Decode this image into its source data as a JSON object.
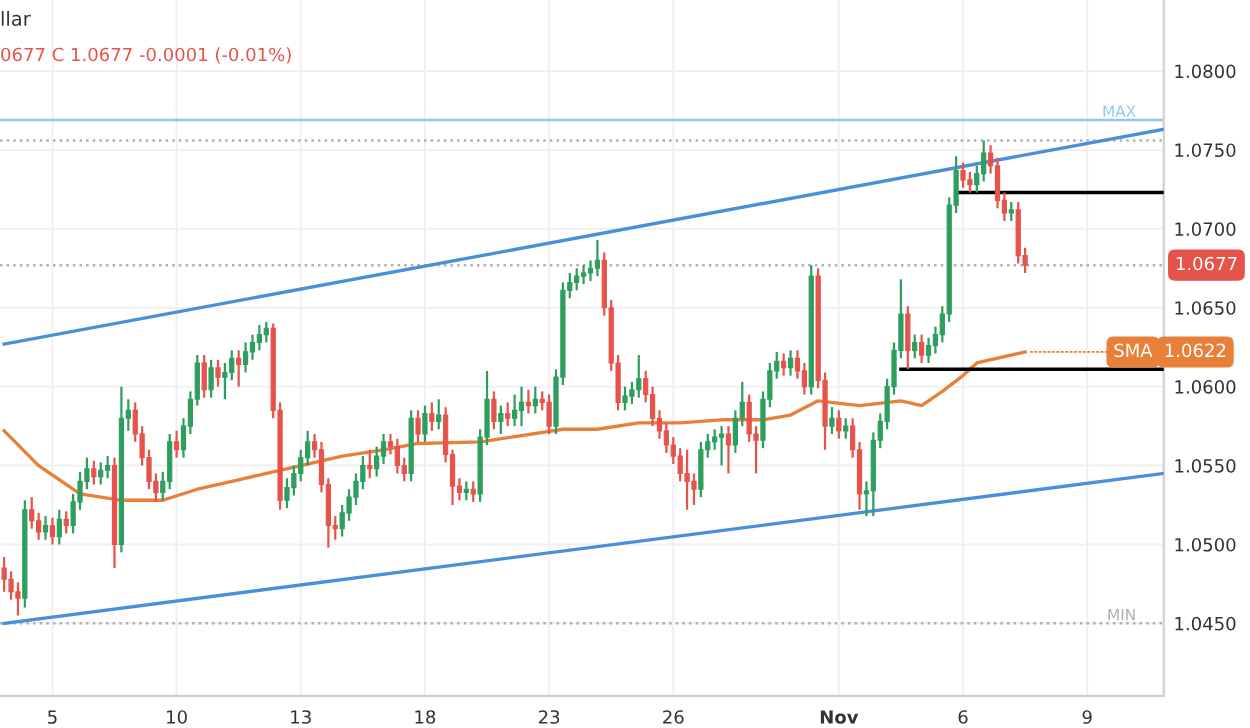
{
  "chart_data": {
    "type": "candlestick",
    "title": "llar",
    "subtitle": "0677 C 1.0677 -0.0001 (-0.01%)",
    "categories": [
      null,
      null,
      null,
      null,
      null,
      null,
      null,
      "5",
      null,
      null,
      null,
      null,
      null,
      null,
      null,
      null,
      null,
      null,
      null,
      null,
      null,
      null,
      null,
      null,
      null,
      "10",
      null,
      null,
      null,
      null,
      null,
      null,
      null,
      null,
      null,
      null,
      null,
      null,
      null,
      null,
      null,
      null,
      null,
      "13",
      null,
      null,
      null,
      null,
      null,
      null,
      null,
      null,
      null,
      null,
      null,
      null,
      null,
      null,
      null,
      null,
      null,
      "18",
      null,
      null,
      null,
      null,
      null,
      null,
      null,
      null,
      null,
      null,
      null,
      null,
      null,
      null,
      null,
      null,
      null,
      "23",
      null,
      null,
      null,
      null,
      null,
      null,
      null,
      null,
      null,
      null,
      null,
      null,
      null,
      null,
      null,
      null,
      null,
      "26",
      null,
      null,
      null,
      null,
      null,
      null,
      null,
      null,
      null,
      null,
      null,
      null,
      null,
      null,
      null,
      null,
      null,
      null,
      null,
      null,
      null,
      null,
      null,
      "Nov",
      null,
      null,
      null,
      null,
      null,
      null,
      null,
      null,
      null,
      null,
      null,
      null,
      null,
      null,
      null,
      null,
      null,
      "6",
      null,
      null,
      null,
      null,
      null,
      null,
      null,
      null,
      null,
      null,
      null,
      null,
      null,
      null,
      null,
      null,
      null,
      "9",
      null,
      null,
      null,
      null,
      null,
      null,
      null,
      null,
      null,
      null,
      null
    ],
    "value_labels": [
      null,
      null,
      null,
      null,
      null,
      null,
      null,
      null,
      null,
      null,
      null,
      null,
      null,
      null,
      null,
      null,
      null,
      null,
      null,
      null,
      null,
      null,
      null,
      null,
      null,
      null,
      null,
      null,
      null,
      null,
      null,
      null,
      null,
      null,
      null,
      null,
      null,
      null,
      null,
      null,
      null,
      null,
      null,
      null,
      null,
      null,
      null,
      null,
      null,
      null,
      null,
      null,
      null,
      null,
      null,
      null,
      null,
      null,
      null,
      null,
      null,
      null,
      null,
      null,
      null,
      null,
      null,
      null,
      null,
      null,
      null,
      null,
      null,
      null,
      null,
      null,
      null,
      null,
      null,
      null,
      null,
      null,
      null,
      null,
      null,
      null,
      null,
      null,
      null,
      null,
      null,
      null,
      null,
      null,
      null,
      null,
      null,
      null,
      null,
      null,
      null,
      null,
      null,
      null,
      null,
      null,
      null,
      null,
      null,
      null,
      null,
      null,
      null,
      null,
      null,
      null,
      null,
      null,
      null,
      null,
      null,
      null,
      null,
      null,
      null,
      null,
      null,
      null,
      null,
      null,
      null,
      null,
      null,
      null,
      null,
      null,
      null,
      null,
      null,
      null,
      null,
      null,
      null,
      null,
      null,
      null,
      null,
      null,
      "1.0677",
      null,
      null,
      null,
      null,
      null,
      null,
      null,
      null,
      null,
      null,
      null,
      null,
      null,
      null,
      null,
      null,
      null,
      null,
      null,
      null
    ],
    "ohlc": [
      [
        1.0485,
        1.0492,
        1.047,
        1.0478
      ],
      [
        1.0478,
        1.0483,
        1.0465,
        1.047
      ],
      [
        1.047,
        1.0476,
        1.0455,
        1.0466
      ],
      [
        1.0466,
        1.0528,
        1.046,
        1.0522
      ],
      [
        1.0522,
        1.053,
        1.051,
        1.0515
      ],
      [
        1.0515,
        1.052,
        1.0503,
        1.0508
      ],
      [
        1.0508,
        1.0518,
        1.0503,
        1.0512
      ],
      [
        1.0512,
        1.0517,
        1.05,
        1.0505
      ],
      [
        1.0505,
        1.0522,
        1.05,
        1.0516
      ],
      [
        1.0516,
        1.0521,
        1.0507,
        1.0512
      ],
      [
        1.0512,
        1.0532,
        1.0507,
        1.0527
      ],
      [
        1.0527,
        1.0546,
        1.0522,
        1.054
      ],
      [
        1.054,
        1.0555,
        1.0535,
        1.0548
      ],
      [
        1.0548,
        1.0553,
        1.0538,
        1.0543
      ],
      [
        1.0543,
        1.0552,
        1.0538,
        1.0547
      ],
      [
        1.0547,
        1.0556,
        1.0542,
        1.055
      ],
      [
        1.055,
        1.0555,
        1.0485,
        1.05
      ],
      [
        1.05,
        1.06,
        1.0495,
        1.058
      ],
      [
        1.058,
        1.0592,
        1.0572,
        1.0585
      ],
      [
        1.0585,
        1.059,
        1.0565,
        1.057
      ],
      [
        1.057,
        1.0575,
        1.055,
        1.0555
      ],
      [
        1.0555,
        1.056,
        1.0535,
        1.054
      ],
      [
        1.054,
        1.0545,
        1.0527,
        1.0533
      ],
      [
        1.0533,
        1.0546,
        1.0528,
        1.054
      ],
      [
        1.054,
        1.057,
        1.0535,
        1.0565
      ],
      [
        1.0565,
        1.0572,
        1.0555,
        1.056
      ],
      [
        1.056,
        1.058,
        1.0555,
        1.0575
      ],
      [
        1.0575,
        1.0597,
        1.057,
        1.0592
      ],
      [
        1.0592,
        1.062,
        1.0588,
        1.0615
      ],
      [
        1.0615,
        1.062,
        1.0593,
        1.0598
      ],
      [
        1.0598,
        1.0617,
        1.0593,
        1.0612
      ],
      [
        1.0612,
        1.0617,
        1.06,
        1.0606
      ],
      [
        1.0606,
        1.0615,
        1.0592,
        1.0609
      ],
      [
        1.0609,
        1.0623,
        1.0604,
        1.0618
      ],
      [
        1.0618,
        1.0623,
        1.06,
        1.0614
      ],
      [
        1.0614,
        1.0628,
        1.0609,
        1.0622
      ],
      [
        1.0622,
        1.0633,
        1.0617,
        1.0628
      ],
      [
        1.0628,
        1.0639,
        1.0623,
        1.0633
      ],
      [
        1.0633,
        1.0641,
        1.0628,
        1.0637
      ],
      [
        1.0637,
        1.064,
        1.058,
        1.0585
      ],
      [
        1.0585,
        1.059,
        1.0522,
        1.0528
      ],
      [
        1.0528,
        1.0542,
        1.0523,
        1.0536
      ],
      [
        1.0536,
        1.055,
        1.0531,
        1.0545
      ],
      [
        1.0545,
        1.056,
        1.054,
        1.0555
      ],
      [
        1.0555,
        1.0572,
        1.055,
        1.0565
      ],
      [
        1.0565,
        1.057,
        1.0555,
        1.056
      ],
      [
        1.056,
        1.0565,
        1.0533,
        1.0538
      ],
      [
        1.0538,
        1.0542,
        1.0498,
        1.0512
      ],
      [
        1.0512,
        1.0518,
        1.0503,
        1.051
      ],
      [
        1.051,
        1.0525,
        1.0505,
        1.052
      ],
      [
        1.052,
        1.0535,
        1.0515,
        1.053
      ],
      [
        1.053,
        1.0545,
        1.0525,
        1.054
      ],
      [
        1.054,
        1.0556,
        1.0535,
        1.055
      ],
      [
        1.055,
        1.056,
        1.0542,
        1.0548
      ],
      [
        1.0548,
        1.0562,
        1.0543,
        1.0556
      ],
      [
        1.0556,
        1.057,
        1.0551,
        1.0565
      ],
      [
        1.0565,
        1.057,
        1.0557,
        1.0562
      ],
      [
        1.0562,
        1.0567,
        1.0545,
        1.055
      ],
      [
        1.055,
        1.0555,
        1.054,
        1.0545
      ],
      [
        1.0545,
        1.0585,
        1.054,
        1.058
      ],
      [
        1.058,
        1.0585,
        1.0565,
        1.057
      ],
      [
        1.057,
        1.0588,
        1.0565,
        1.0583
      ],
      [
        1.0583,
        1.059,
        1.0572,
        1.0578
      ],
      [
        1.0578,
        1.0592,
        1.0573,
        1.0582
      ],
      [
        1.0582,
        1.0587,
        1.0552,
        1.0557
      ],
      [
        1.0557,
        1.056,
        1.0525,
        1.0537
      ],
      [
        1.0537,
        1.0542,
        1.0528,
        1.0533
      ],
      [
        1.0533,
        1.054,
        1.0528,
        1.0535
      ],
      [
        1.0535,
        1.054,
        1.0527,
        1.0532
      ],
      [
        1.0532,
        1.0573,
        1.0527,
        1.0568
      ],
      [
        1.0568,
        1.061,
        1.0563,
        1.0592
      ],
      [
        1.0592,
        1.0597,
        1.0573,
        1.0578
      ],
      [
        1.0578,
        1.0588,
        1.057,
        1.0583
      ],
      [
        1.0583,
        1.059,
        1.0575,
        1.058
      ],
      [
        1.058,
        1.0595,
        1.0575,
        1.0585
      ],
      [
        1.0585,
        1.06,
        1.0575,
        1.059
      ],
      [
        1.059,
        1.0598,
        1.0583,
        1.0588
      ],
      [
        1.0588,
        1.06,
        1.0583,
        1.0592
      ],
      [
        1.0592,
        1.0597,
        1.0585,
        1.059
      ],
      [
        1.059,
        1.0595,
        1.057,
        1.0575
      ],
      [
        1.0575,
        1.0611,
        1.057,
        1.0606
      ],
      [
        1.0606,
        1.0666,
        1.0601,
        1.0661
      ],
      [
        1.0661,
        1.0672,
        1.0656,
        1.0666
      ],
      [
        1.0666,
        1.0675,
        1.0661,
        1.067
      ],
      [
        1.067,
        1.0677,
        1.0665,
        1.0672
      ],
      [
        1.0672,
        1.068,
        1.0667,
        1.0675
      ],
      [
        1.0675,
        1.0693,
        1.067,
        1.068
      ],
      [
        1.068,
        1.0685,
        1.0645,
        1.065
      ],
      [
        1.065,
        1.0655,
        1.061,
        1.0615
      ],
      [
        1.0615,
        1.062,
        1.0585,
        1.059
      ],
      [
        1.059,
        1.06,
        1.0585,
        1.0594
      ],
      [
        1.0594,
        1.0603,
        1.0589,
        1.0598
      ],
      [
        1.0598,
        1.062,
        1.0593,
        1.0605
      ],
      [
        1.0605,
        1.061,
        1.059,
        1.0595
      ],
      [
        1.0595,
        1.06,
        1.0575,
        1.058
      ],
      [
        1.058,
        1.0585,
        1.0567,
        1.0572
      ],
      [
        1.0572,
        1.0577,
        1.0558,
        1.0563
      ],
      [
        1.0563,
        1.0568,
        1.0551,
        1.0556
      ],
      [
        1.0556,
        1.0561,
        1.054,
        1.0545
      ],
      [
        1.0545,
        1.056,
        1.0522,
        1.054
      ],
      [
        1.054,
        1.0545,
        1.0525,
        1.0535
      ],
      [
        1.0535,
        1.0565,
        1.053,
        1.056
      ],
      [
        1.056,
        1.057,
        1.0555,
        1.0565
      ],
      [
        1.0565,
        1.0573,
        1.056,
        1.0568
      ],
      [
        1.0568,
        1.0575,
        1.055,
        1.057
      ],
      [
        1.057,
        1.0575,
        1.0545,
        1.0563
      ],
      [
        1.0563,
        1.0585,
        1.0558,
        1.058
      ],
      [
        1.058,
        1.0603,
        1.0575,
        1.059
      ],
      [
        1.059,
        1.0595,
        1.0565,
        1.057
      ],
      [
        1.057,
        1.0575,
        1.0545,
        1.0566
      ],
      [
        1.0566,
        1.0597,
        1.0561,
        1.0592
      ],
      [
        1.0592,
        1.0615,
        1.0587,
        1.061
      ],
      [
        1.061,
        1.0622,
        1.0605,
        1.0616
      ],
      [
        1.0616,
        1.0621,
        1.0607,
        1.0612
      ],
      [
        1.0612,
        1.0623,
        1.0607,
        1.0618
      ],
      [
        1.0618,
        1.0623,
        1.0605,
        1.061
      ],
      [
        1.061,
        1.0615,
        1.0595,
        1.06
      ],
      [
        1.06,
        1.0677,
        1.0595,
        1.067
      ],
      [
        1.067,
        1.0675,
        1.0599,
        1.0604
      ],
      [
        1.0604,
        1.0609,
        1.056,
        1.0575
      ],
      [
        1.0575,
        1.0587,
        1.057,
        1.058
      ],
      [
        1.058,
        1.0585,
        1.0567,
        1.0572
      ],
      [
        1.0572,
        1.058,
        1.0567,
        1.0575
      ],
      [
        1.0575,
        1.058,
        1.0555,
        1.056
      ],
      [
        1.056,
        1.0565,
        1.0522,
        1.0532
      ],
      [
        1.0532,
        1.054,
        1.0518,
        1.0534
      ],
      [
        1.0534,
        1.0571,
        1.0518,
        1.0566
      ],
      [
        1.0566,
        1.0583,
        1.0561,
        1.0578
      ],
      [
        1.0578,
        1.0605,
        1.0573,
        1.06
      ],
      [
        1.06,
        1.0628,
        1.0595,
        1.0623
      ],
      [
        1.0623,
        1.0668,
        1.0618,
        1.0646
      ],
      [
        1.0646,
        1.0651,
        1.0611,
        1.0623
      ],
      [
        1.0623,
        1.0633,
        1.0618,
        1.0628
      ],
      [
        1.0628,
        1.0633,
        1.0615,
        1.062
      ],
      [
        1.062,
        1.0631,
        1.0615,
        1.0626
      ],
      [
        1.0626,
        1.0638,
        1.0621,
        1.0633
      ],
      [
        1.0633,
        1.0651,
        1.0628,
        1.0646
      ],
      [
        1.0646,
        1.072,
        1.0641,
        1.0715
      ],
      [
        1.0715,
        1.0746,
        1.071,
        1.0737
      ],
      [
        1.0737,
        1.0742,
        1.0726,
        1.0731
      ],
      [
        1.0731,
        1.0736,
        1.0723,
        1.0728
      ],
      [
        1.0728,
        1.074,
        1.0723,
        1.0735
      ],
      [
        1.0735,
        1.0756,
        1.073,
        1.0748
      ],
      [
        1.0748,
        1.0753,
        1.0735,
        1.074
      ],
      [
        1.074,
        1.0745,
        1.0713,
        1.0718
      ],
      [
        1.0718,
        1.0723,
        1.0705,
        1.071
      ],
      [
        1.071,
        1.0717,
        1.0705,
        1.0712
      ],
      [
        1.0712,
        1.0717,
        1.0678,
        1.0683
      ],
      [
        1.0683,
        1.0688,
        1.0672,
        1.0677
      ],
      null,
      null,
      null,
      null,
      null,
      null,
      null,
      null,
      null,
      null,
      null,
      null,
      null,
      null,
      null,
      null,
      null,
      null,
      null,
      null
    ],
    "colors": [
      "#e5534b",
      "#e5534b",
      "#e5534b",
      "#2e9e5e",
      "#e5534b",
      "#e5534b",
      "#2e9e5e",
      "#e5534b",
      "#2e9e5e",
      "#e5534b",
      "#2e9e5e",
      "#2e9e5e",
      "#2e9e5e",
      "#e5534b",
      "#2e9e5e",
      "#2e9e5e",
      "#e5534b",
      "#2e9e5e",
      "#2e9e5e",
      "#e5534b",
      "#e5534b",
      "#e5534b",
      "#e5534b",
      "#2e9e5e",
      "#2e9e5e",
      "#e5534b",
      "#2e9e5e",
      "#2e9e5e",
      "#2e9e5e",
      "#e5534b",
      "#2e9e5e",
      "#e5534b",
      "#2e9e5e",
      "#2e9e5e",
      "#e5534b",
      "#2e9e5e",
      "#2e9e5e",
      "#2e9e5e",
      "#2e9e5e",
      "#e5534b",
      "#e5534b",
      "#2e9e5e",
      "#2e9e5e",
      "#2e9e5e",
      "#2e9e5e",
      "#e5534b",
      "#e5534b",
      "#e5534b",
      "#e5534b",
      "#2e9e5e",
      "#2e9e5e",
      "#2e9e5e",
      "#2e9e5e",
      "#e5534b",
      "#2e9e5e",
      "#2e9e5e",
      "#e5534b",
      "#e5534b",
      "#e5534b",
      "#2e9e5e",
      "#e5534b",
      "#2e9e5e",
      "#e5534b",
      "#2e9e5e",
      "#e5534b",
      "#e5534b",
      "#e5534b",
      "#2e9e5e",
      "#e5534b",
      "#2e9e5e",
      "#2e9e5e",
      "#e5534b",
      "#2e9e5e",
      "#e5534b",
      "#2e9e5e",
      "#2e9e5e",
      "#e5534b",
      "#2e9e5e",
      "#e5534b",
      "#e5534b",
      "#2e9e5e",
      "#2e9e5e",
      "#2e9e5e",
      "#2e9e5e",
      "#2e9e5e",
      "#2e9e5e",
      "#2e9e5e",
      "#e5534b",
      "#e5534b",
      "#e5534b",
      "#2e9e5e",
      "#2e9e5e",
      "#2e9e5e",
      "#e5534b",
      "#e5534b",
      "#e5534b",
      "#e5534b",
      "#e5534b",
      "#e5534b",
      "#e5534b",
      "#e5534b",
      "#2e9e5e",
      "#2e9e5e",
      "#2e9e5e",
      "#2e9e5e",
      "#e5534b",
      "#2e9e5e",
      "#2e9e5e",
      "#e5534b",
      "#e5534b",
      "#2e9e5e",
      "#2e9e5e",
      "#2e9e5e",
      "#e5534b",
      "#2e9e5e",
      "#e5534b",
      "#e5534b",
      "#2e9e5e",
      "#e5534b",
      "#e5534b",
      "#2e9e5e",
      "#e5534b",
      "#2e9e5e",
      "#e5534b",
      "#e5534b",
      "#2e9e5e",
      "#2e9e5e",
      "#2e9e5e",
      "#2e9e5e",
      "#2e9e5e",
      "#2e9e5e",
      "#e5534b",
      "#2e9e5e",
      "#e5534b",
      "#2e9e5e",
      "#2e9e5e",
      "#2e9e5e",
      "#2e9e5e",
      "#2e9e5e",
      "#e5534b",
      "#e5534b",
      "#2e9e5e",
      "#2e9e5e",
      "#e5534b",
      "#e5534b",
      "#e5534b",
      "#2e9e5e",
      "#e5534b",
      "#e5534b",
      null,
      null,
      null,
      null,
      null,
      null,
      null,
      null,
      null,
      null,
      null,
      null,
      null,
      null,
      null,
      null,
      null,
      null,
      null,
      null
    ],
    "series": [
      {
        "name": "SMA",
        "type": "line",
        "color": "#e8803a",
        "value_labels": [
          null,
          null,
          null,
          null,
          null,
          null,
          null,
          null,
          null,
          null,
          null,
          null,
          null,
          null,
          null,
          null,
          null,
          null,
          null,
          null,
          null,
          null,
          null,
          null,
          null,
          null,
          null,
          null,
          null,
          null,
          null,
          null,
          null,
          null,
          null,
          null,
          null,
          null,
          null,
          null,
          null,
          null,
          null,
          null,
          null,
          null,
          null,
          null,
          null,
          null,
          null,
          null,
          null,
          null,
          null,
          null,
          null,
          null,
          null,
          null,
          null,
          null,
          null,
          null,
          null,
          null,
          null,
          null,
          null,
          null,
          null,
          null,
          null,
          null,
          null,
          null,
          null,
          null,
          null,
          null,
          null,
          null,
          null,
          null,
          null,
          null,
          null,
          null,
          null,
          null,
          null,
          null,
          null,
          null,
          null,
          null,
          null,
          null,
          null,
          null,
          null,
          null,
          null,
          null,
          null,
          null,
          null,
          null,
          null,
          null,
          null,
          null,
          null,
          null,
          null,
          null,
          null,
          null,
          null,
          null,
          null,
          null,
          null,
          null,
          null,
          null,
          null,
          null,
          null,
          null,
          null,
          null,
          null,
          null,
          null,
          null,
          null,
          null,
          null,
          null,
          null,
          null,
          null,
          null,
          null,
          null,
          null,
          null,
          "1.0622",
          null,
          null,
          null,
          null,
          null,
          null,
          null,
          null,
          null,
          null,
          null,
          null,
          null,
          null,
          null,
          null,
          null,
          null,
          null,
          null
        ],
        "values": [
          1.0572,
          null,
          null,
          null,
          null,
          1.055,
          null,
          null,
          null,
          null,
          null,
          1.0532,
          null,
          null,
          null,
          null,
          null,
          1.0528,
          null,
          null,
          null,
          null,
          null,
          1.0528,
          null,
          null,
          null,
          null,
          1.0535,
          null,
          null,
          null,
          null,
          null,
          1.0541,
          null,
          null,
          null,
          null,
          1.0546,
          null,
          null,
          null,
          1.055,
          null,
          null,
          null,
          null,
          null,
          1.0556,
          null,
          null,
          null,
          null,
          null,
          1.056,
          null,
          null,
          null,
          null,
          1.0564,
          null,
          null,
          null,
          null,
          null,
          null,
          null,
          null,
          1.0565,
          null,
          null,
          null,
          null,
          null,
          1.0569,
          null,
          null,
          null,
          null,
          null,
          1.0573,
          null,
          null,
          null,
          null,
          1.0573,
          null,
          null,
          null,
          null,
          null,
          1.0577,
          null,
          null,
          null,
          null,
          null,
          1.0577,
          null,
          null,
          null,
          null,
          null,
          1.0579,
          null,
          null,
          null,
          null,
          null,
          1.0579,
          null,
          null,
          null,
          1.0582,
          null,
          null,
          null,
          1.0591,
          null,
          null,
          null,
          null,
          null,
          1.0588,
          null,
          null,
          null,
          null,
          null,
          1.0591,
          null,
          null,
          1.0588,
          null,
          null,
          1.0597,
          null,
          null,
          1.0607,
          null,
          1.0615,
          null,
          null,
          null,
          null,
          null,
          null,
          1.0622,
          null,
          null,
          null,
          null,
          null,
          null,
          null,
          null,
          null,
          null,
          null,
          null,
          null,
          null,
          null,
          null,
          null,
          null,
          null,
          null
        ]
      },
      {
        "type": "line",
        "color": "#4a90d9",
        "values": [
          1.0627,
          null,
          null,
          null,
          null,
          null,
          null,
          null,
          null,
          null,
          null,
          null,
          null,
          null,
          null,
          null,
          null,
          null,
          null,
          null,
          null,
          null,
          null,
          null,
          null,
          null,
          null,
          null,
          null,
          null,
          null,
          null,
          null,
          null,
          null,
          null,
          null,
          null,
          null,
          null,
          null,
          null,
          null,
          null,
          null,
          null,
          null,
          null,
          null,
          null,
          null,
          null,
          null,
          null,
          null,
          null,
          null,
          null,
          null,
          null,
          null,
          null,
          null,
          null,
          null,
          null,
          null,
          null,
          null,
          null,
          null,
          null,
          null,
          null,
          null,
          null,
          null,
          null,
          null,
          null,
          null,
          null,
          null,
          null,
          null,
          null,
          null,
          null,
          null,
          null,
          null,
          null,
          null,
          null,
          null,
          null,
          null,
          null,
          null,
          null,
          null,
          null,
          null,
          null,
          null,
          null,
          null,
          null,
          null,
          null,
          null,
          null,
          null,
          null,
          null,
          null,
          null,
          null,
          null,
          null,
          null,
          null,
          null,
          null,
          null,
          null,
          null,
          null,
          null,
          null,
          null,
          null,
          null,
          null,
          null,
          null,
          null,
          null,
          null,
          null,
          null,
          null,
          null,
          null,
          null,
          null,
          null,
          null,
          null,
          null,
          null,
          null,
          null,
          null,
          null,
          null,
          null,
          null,
          null,
          null,
          null,
          null,
          null,
          null,
          null,
          null,
          null,
          null,
          1.0763
        ]
      },
      {
        "type": "line",
        "color": "#4a90d9",
        "values": [
          1.045,
          null,
          null,
          null,
          null,
          null,
          null,
          null,
          null,
          null,
          null,
          null,
          null,
          null,
          null,
          null,
          null,
          null,
          null,
          null,
          null,
          null,
          null,
          null,
          null,
          null,
          null,
          null,
          null,
          null,
          null,
          null,
          null,
          null,
          null,
          null,
          null,
          null,
          null,
          null,
          null,
          null,
          null,
          null,
          null,
          null,
          null,
          null,
          null,
          null,
          null,
          null,
          null,
          null,
          null,
          null,
          null,
          null,
          null,
          null,
          null,
          null,
          null,
          null,
          null,
          null,
          null,
          null,
          null,
          null,
          null,
          null,
          null,
          null,
          null,
          null,
          null,
          null,
          null,
          null,
          null,
          null,
          null,
          null,
          null,
          null,
          null,
          null,
          null,
          null,
          null,
          null,
          null,
          null,
          null,
          null,
          null,
          null,
          null,
          null,
          null,
          null,
          null,
          null,
          null,
          null,
          null,
          null,
          null,
          null,
          null,
          null,
          null,
          null,
          null,
          null,
          null,
          null,
          null,
          null,
          null,
          null,
          null,
          null,
          null,
          null,
          null,
          null,
          null,
          null,
          null,
          null,
          null,
          null,
          null,
          null,
          null,
          null,
          null,
          null,
          null,
          null,
          null,
          null,
          null,
          null,
          null,
          null,
          null,
          null,
          null,
          null,
          null,
          null,
          null,
          null,
          null,
          null,
          null,
          null,
          null,
          null,
          null,
          null,
          null,
          null,
          null,
          null,
          1.0545
        ]
      },
      {
        "type": "line",
        "color": "#000000",
        "values": [
          null,
          null,
          null,
          null,
          null,
          null,
          null,
          null,
          null,
          null,
          null,
          null,
          null,
          null,
          null,
          null,
          null,
          null,
          null,
          null,
          null,
          null,
          null,
          null,
          null,
          null,
          null,
          null,
          null,
          null,
          null,
          null,
          null,
          null,
          null,
          null,
          null,
          null,
          null,
          null,
          null,
          null,
          null,
          null,
          null,
          null,
          null,
          null,
          null,
          null,
          null,
          null,
          null,
          null,
          null,
          null,
          null,
          null,
          null,
          null,
          null,
          null,
          null,
          null,
          null,
          null,
          null,
          null,
          null,
          null,
          null,
          null,
          null,
          null,
          null,
          null,
          null,
          null,
          null,
          null,
          null,
          null,
          null,
          null,
          null,
          null,
          null,
          null,
          null,
          null,
          null,
          null,
          null,
          null,
          null,
          null,
          null,
          null,
          null,
          null,
          null,
          null,
          null,
          null,
          null,
          null,
          null,
          null,
          null,
          null,
          null,
          null,
          null,
          null,
          null,
          null,
          null,
          null,
          null,
          null,
          null,
          null,
          null,
          null,
          null,
          null,
          null,
          null,
          null,
          null,
          null,
          null,
          null,
          null,
          null,
          null,
          null,
          null,
          1.0723,
          null,
          null,
          null,
          null,
          null,
          null,
          null,
          null,
          null,
          null,
          null,
          null,
          null,
          null,
          null,
          null,
          null,
          null,
          null,
          null,
          null,
          null,
          null,
          null,
          null,
          null,
          null,
          null,
          null,
          1.0723
        ]
      },
      {
        "type": "line",
        "color": "#000000",
        "values": [
          null,
          null,
          null,
          null,
          null,
          null,
          null,
          null,
          null,
          null,
          null,
          null,
          null,
          null,
          null,
          null,
          null,
          null,
          null,
          null,
          null,
          null,
          null,
          null,
          null,
          null,
          null,
          null,
          null,
          null,
          null,
          null,
          null,
          null,
          null,
          null,
          null,
          null,
          null,
          null,
          null,
          null,
          null,
          null,
          null,
          null,
          null,
          null,
          null,
          null,
          null,
          null,
          null,
          null,
          null,
          null,
          null,
          null,
          null,
          null,
          null,
          null,
          null,
          null,
          null,
          null,
          null,
          null,
          null,
          null,
          null,
          null,
          null,
          null,
          null,
          null,
          null,
          null,
          null,
          null,
          null,
          null,
          null,
          null,
          null,
          null,
          null,
          null,
          null,
          null,
          null,
          null,
          null,
          null,
          null,
          null,
          null,
          null,
          null,
          null,
          null,
          null,
          null,
          null,
          null,
          null,
          null,
          null,
          null,
          null,
          null,
          null,
          null,
          null,
          null,
          null,
          null,
          null,
          null,
          null,
          null,
          null,
          null,
          null,
          null,
          null,
          null,
          null,
          null,
          null,
          1.0611,
          null,
          null,
          null,
          null,
          null,
          null,
          null,
          null,
          null,
          null,
          null,
          null,
          null,
          null,
          null,
          null,
          null,
          null,
          null,
          null,
          null,
          null,
          null,
          null,
          null,
          null,
          null,
          null,
          null,
          null,
          null,
          null,
          null,
          null,
          null,
          null,
          null,
          1.0611
        ]
      }
    ],
    "ref_lines": [
      {
        "axis": "y",
        "value": 1.0769,
        "label": "MAX",
        "color": "#8ec9ea",
        "line_style": "solid"
      },
      {
        "axis": "y",
        "value": 1.0756,
        "color": "#b0b0b0",
        "line_style": "dotted"
      },
      {
        "axis": "y",
        "value": 1.0677,
        "color": "#b0b0b0",
        "line_style": "dotted"
      },
      {
        "axis": "y",
        "value": 1.045,
        "label": "MIN",
        "color": "#b0b0b0",
        "line_style": "dotted"
      }
    ],
    "ylim": [
      1.0404,
      1.0845
    ],
    "yticks": [
      {
        "value": 1.045,
        "label": "1.0450"
      },
      {
        "value": 1.05,
        "label": "1.0500"
      },
      {
        "value": 1.055,
        "label": "1.0550"
      },
      {
        "value": 1.06,
        "label": "1.0600"
      },
      {
        "value": 1.065,
        "label": "1.0650"
      },
      {
        "value": 1.07,
        "label": "1.0700"
      },
      {
        "value": 1.075,
        "label": "1.0750"
      },
      {
        "value": 1.08,
        "label": "1.0800"
      }
    ],
    "grid": true
  }
}
